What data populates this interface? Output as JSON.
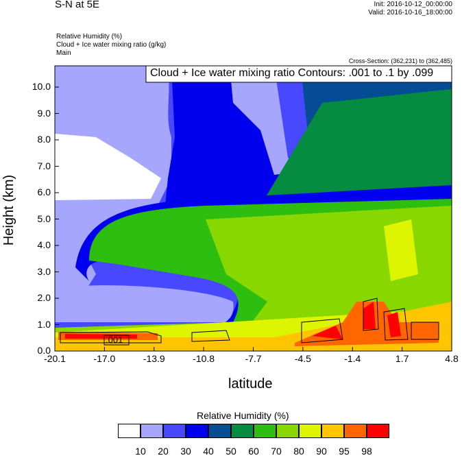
{
  "header": {
    "title": "S-N at 5E",
    "init": "Init: 2016-10-12_00:00:00",
    "valid": "Valid: 2016-10-16_18:00:00",
    "field1": "Relative Humidity   (%)",
    "field2": "Cloud + Ice water mixing ratio   (g/kg)",
    "field3": "Main",
    "cross_section": "Cross-Section: (362,231) to (362,485)"
  },
  "chart_data": {
    "type": "heatmap",
    "contour_label": "Cloud + Ice water mixing ratio Contours: .001 to .1 by .099",
    "contour_inline_label": ".001",
    "xlabel": "latitude",
    "ylabel": "Height (km)",
    "x_ticks": [
      "-20.1",
      "-17.0",
      "-13.9",
      "-10.8",
      "-7.7",
      "-4.5",
      "-1.4",
      "1.7",
      "4.8"
    ],
    "y_ticks": [
      "0.0",
      "1.0",
      "2.0",
      "3.0",
      "4.0",
      "5.0",
      "6.0",
      "7.0",
      "8.0",
      "9.0",
      "10.0"
    ],
    "xlim": [
      -20.1,
      4.8
    ],
    "ylim": [
      0,
      10.8
    ],
    "colorbar": {
      "title": "Relative Humidity  (%)",
      "levels": [
        "10",
        "20",
        "30",
        "40",
        "50",
        "60",
        "70",
        "80",
        "90",
        "95",
        "98"
      ],
      "colors": [
        "#FFFFFF",
        "#A6A6FF",
        "#4848FF",
        "#0000EE",
        "#044C94",
        "#058C40",
        "#2EBE10",
        "#88D800",
        "#DEF500",
        "#FFC600",
        "#FF6600",
        "#FF0000"
      ]
    }
  }
}
